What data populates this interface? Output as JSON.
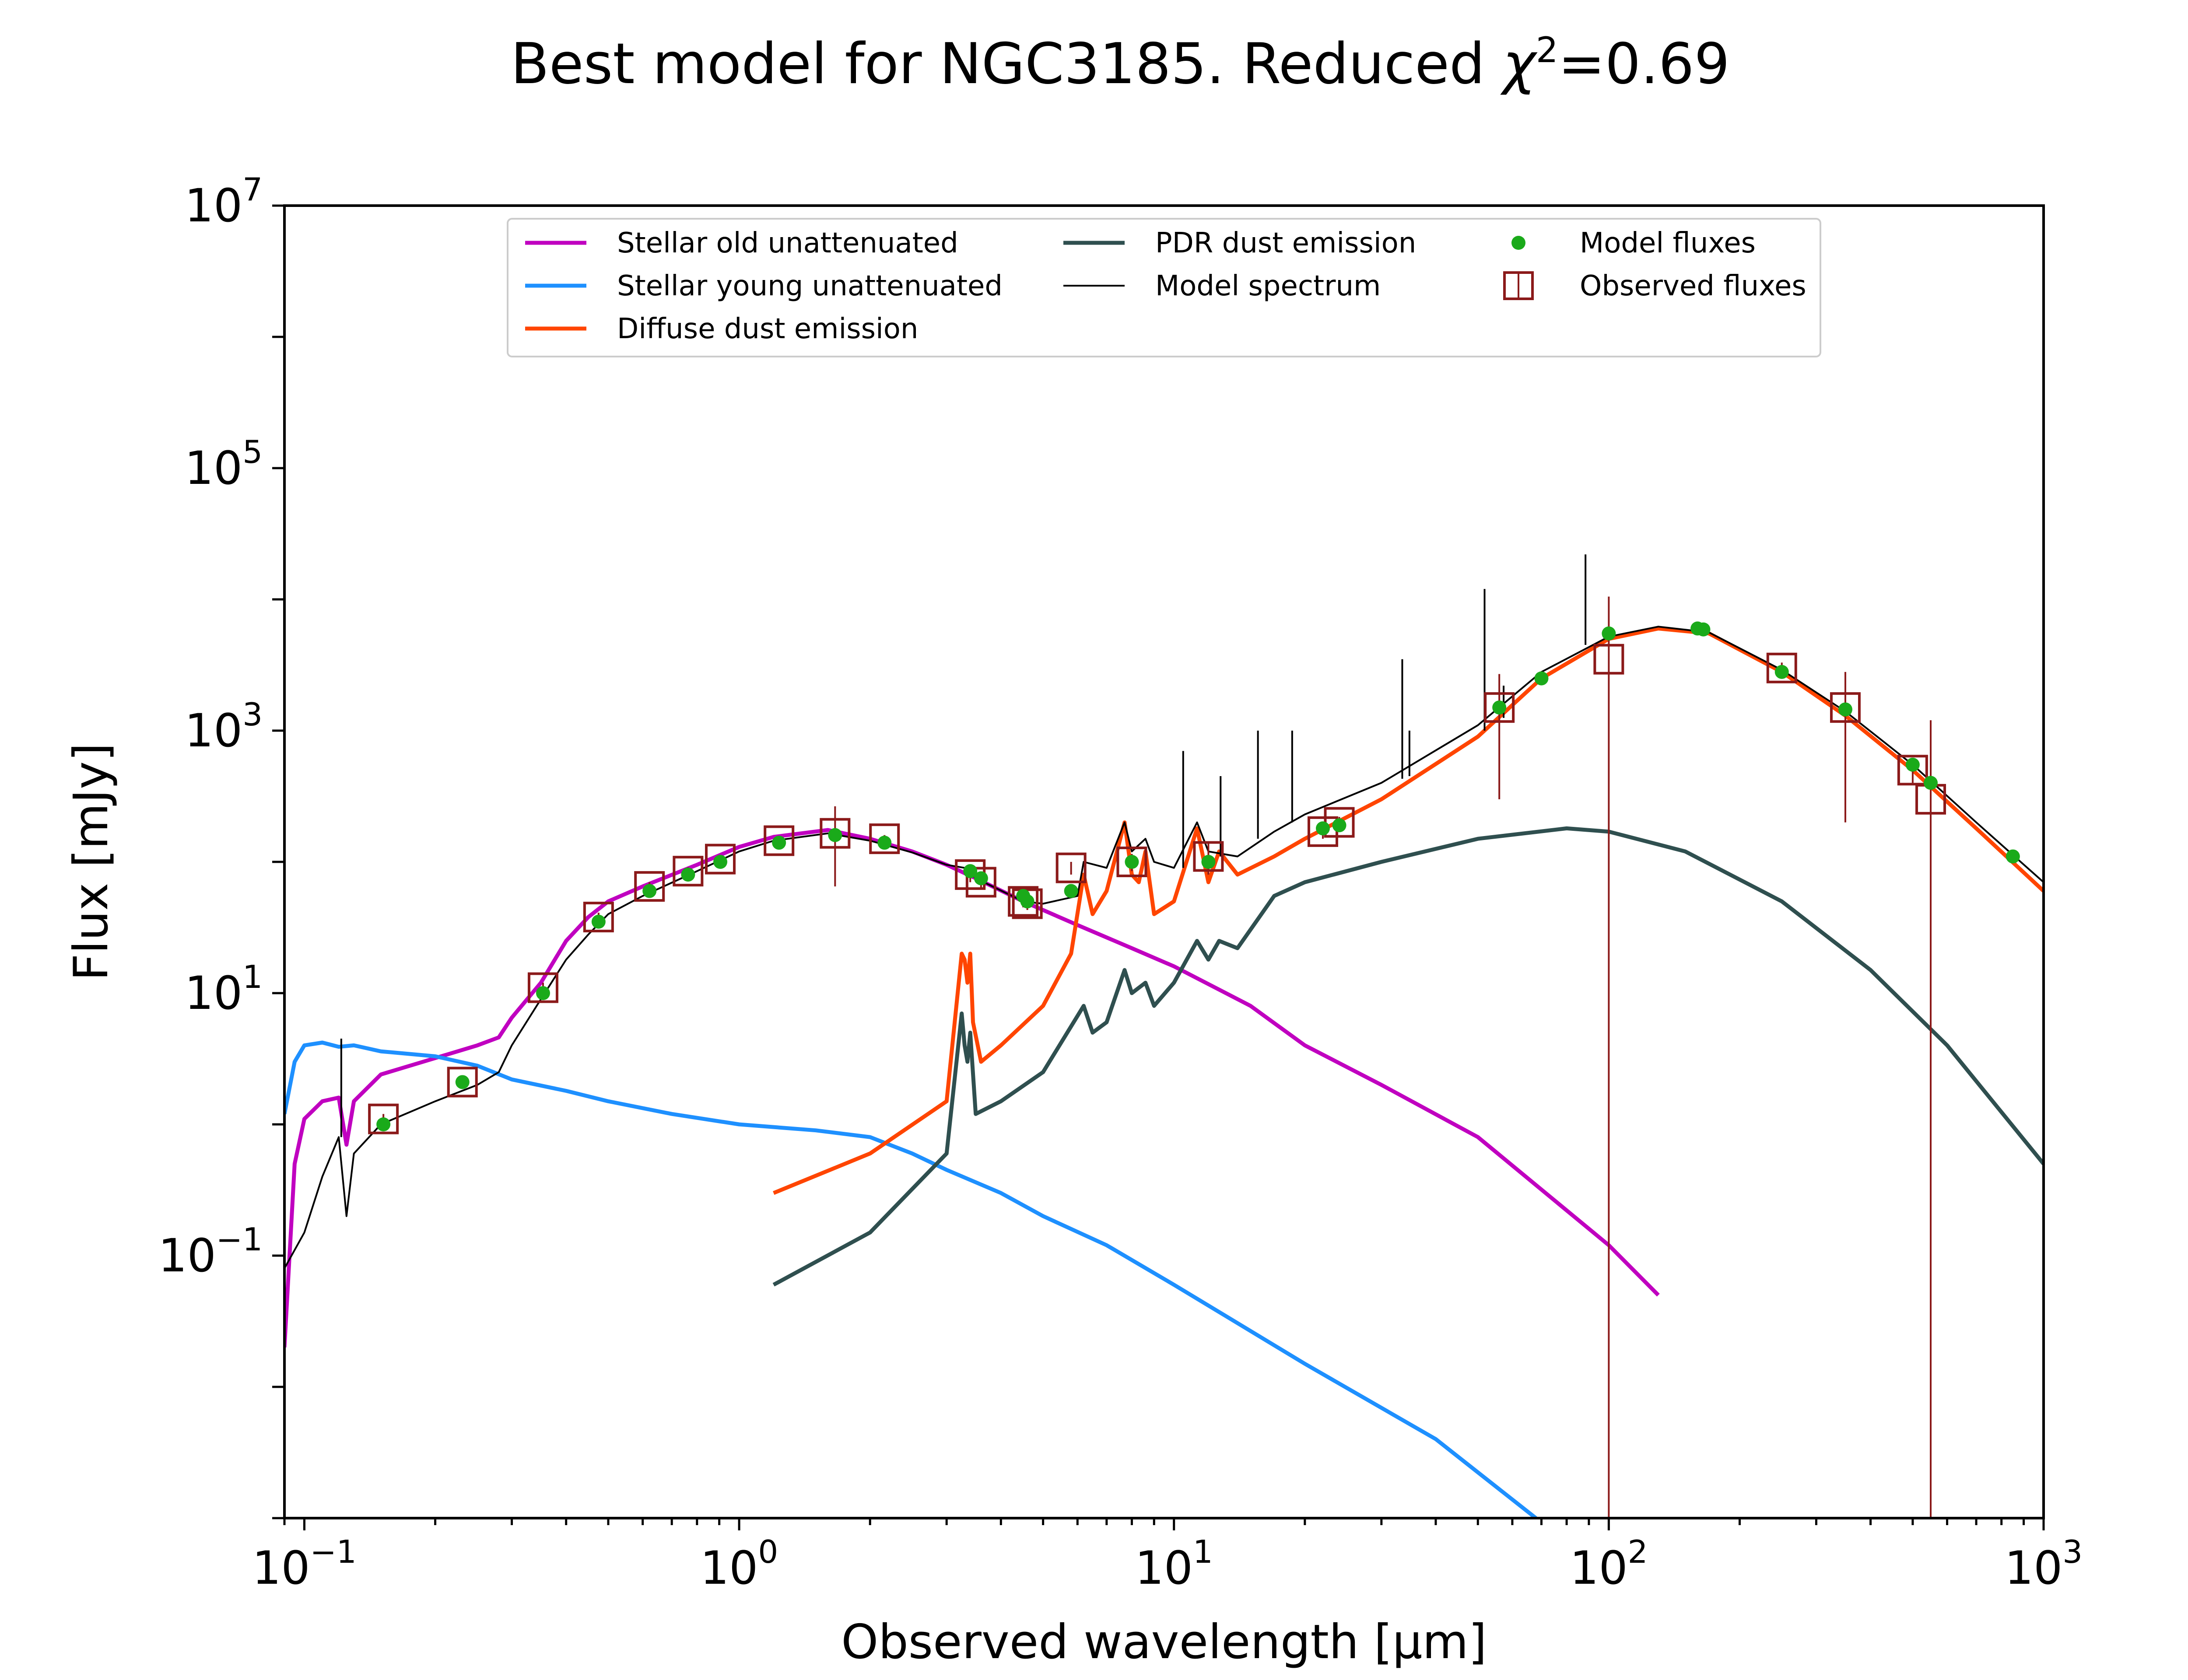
{
  "chart_data": {
    "type": "line",
    "title": "Best model for NGC3185. Reduced χ²=0.69",
    "title_parts": {
      "main": "Best model for NGC3185. Reduced ",
      "chi": "χ",
      "sup": "2",
      "tail": "=0.69"
    },
    "xlabel": "Observed wavelength [μm]",
    "ylabel": "Flux [mJy]",
    "xscale": "log",
    "yscale": "log",
    "xlim": [
      0.09,
      1000
    ],
    "ylim": [
      0.001,
      10000000
    ],
    "x_ticks": [
      {
        "base": "10",
        "exp": "−1",
        "value": 0.1
      },
      {
        "base": "10",
        "exp": "0",
        "value": 1
      },
      {
        "base": "10",
        "exp": "1",
        "value": 10
      },
      {
        "base": "10",
        "exp": "2",
        "value": 100
      },
      {
        "base": "10",
        "exp": "3",
        "value": 1000
      }
    ],
    "y_ticks": [
      {
        "base": "10",
        "exp": "−1",
        "value": 0.1
      },
      {
        "base": "10",
        "exp": "1",
        "value": 10
      },
      {
        "base": "10",
        "exp": "3",
        "value": 1000
      },
      {
        "base": "10",
        "exp": "5",
        "value": 100000
      },
      {
        "base": "10",
        "exp": "7",
        "value": 10000000
      }
    ],
    "legend_position": "top-center",
    "legend": [
      {
        "label": "Stellar old unattenuated",
        "kind": "line",
        "color": "#c000c0"
      },
      {
        "label": "Stellar young unattenuated",
        "kind": "line",
        "color": "#1e90ff"
      },
      {
        "label": "Diffuse dust emission",
        "kind": "line",
        "color": "#ff4500"
      },
      {
        "label": "PDR dust emission",
        "kind": "line",
        "color": "#2f4f4f"
      },
      {
        "label": "Model spectrum",
        "kind": "thin-line",
        "color": "#000000"
      },
      {
        "label": "Model fluxes",
        "kind": "dot",
        "color": "#1aaa1a"
      },
      {
        "label": "Observed fluxes",
        "kind": "square",
        "color": "#8b1a1a"
      }
    ],
    "series": [
      {
        "name": "Stellar old unattenuated",
        "color": "#c000c0",
        "width": 9,
        "points": [
          [
            0.09,
            0.02
          ],
          [
            0.095,
            0.5
          ],
          [
            0.1,
            1.1
          ],
          [
            0.11,
            1.5
          ],
          [
            0.12,
            1.6
          ],
          [
            0.125,
            0.7
          ],
          [
            0.13,
            1.5
          ],
          [
            0.15,
            2.4
          ],
          [
            0.2,
            3.2
          ],
          [
            0.25,
            4.0
          ],
          [
            0.28,
            4.6
          ],
          [
            0.3,
            6.5
          ],
          [
            0.35,
            12
          ],
          [
            0.4,
            25
          ],
          [
            0.45,
            38
          ],
          [
            0.5,
            50
          ],
          [
            0.6,
            65
          ],
          [
            0.8,
            95
          ],
          [
            1.0,
            130
          ],
          [
            1.2,
            155
          ],
          [
            1.6,
            175
          ],
          [
            2.0,
            150
          ],
          [
            2.5,
            120
          ],
          [
            3.0,
            95
          ],
          [
            3.5,
            75
          ],
          [
            4.5,
            50
          ],
          [
            6.0,
            33
          ],
          [
            8.0,
            22
          ],
          [
            10,
            16
          ],
          [
            15,
            8
          ],
          [
            20,
            4
          ],
          [
            30,
            2
          ],
          [
            50,
            0.8
          ],
          [
            100,
            0.12
          ],
          [
            130,
            0.05
          ]
        ]
      },
      {
        "name": "Stellar young unattenuated",
        "color": "#1e90ff",
        "width": 9,
        "points": [
          [
            0.09,
            1.2
          ],
          [
            0.095,
            3.0
          ],
          [
            0.1,
            4.0
          ],
          [
            0.11,
            4.2
          ],
          [
            0.12,
            3.9
          ],
          [
            0.13,
            4.0
          ],
          [
            0.15,
            3.6
          ],
          [
            0.2,
            3.3
          ],
          [
            0.25,
            2.8
          ],
          [
            0.3,
            2.2
          ],
          [
            0.4,
            1.8
          ],
          [
            0.5,
            1.5
          ],
          [
            0.7,
            1.2
          ],
          [
            1.0,
            1.0
          ],
          [
            1.5,
            0.9
          ],
          [
            2.0,
            0.8
          ],
          [
            2.5,
            0.6
          ],
          [
            3.0,
            0.45
          ],
          [
            4.0,
            0.3
          ],
          [
            5.0,
            0.2
          ],
          [
            7.0,
            0.12
          ],
          [
            10,
            0.06
          ],
          [
            20,
            0.015
          ],
          [
            40,
            0.004
          ],
          [
            68,
            0.001
          ]
        ]
      },
      {
        "name": "Diffuse dust emission",
        "color": "#ff4500",
        "width": 9,
        "points": [
          [
            1.2,
            0.3
          ],
          [
            2.0,
            0.6
          ],
          [
            3.0,
            1.5
          ],
          [
            3.25,
            20
          ],
          [
            3.3,
            18
          ],
          [
            3.35,
            12
          ],
          [
            3.4,
            20
          ],
          [
            3.45,
            6
          ],
          [
            3.6,
            3
          ],
          [
            4.0,
            4
          ],
          [
            5.0,
            8
          ],
          [
            5.8,
            20
          ],
          [
            6.2,
            80
          ],
          [
            6.5,
            40
          ],
          [
            7.0,
            60
          ],
          [
            7.7,
            200
          ],
          [
            8.0,
            80
          ],
          [
            8.3,
            70
          ],
          [
            8.6,
            120
          ],
          [
            9.0,
            40
          ],
          [
            10,
            50
          ],
          [
            11.3,
            180
          ],
          [
            12,
            70
          ],
          [
            12.7,
            120
          ],
          [
            14,
            80
          ],
          [
            17,
            110
          ],
          [
            20,
            150
          ],
          [
            30,
            300
          ],
          [
            50,
            900
          ],
          [
            70,
            2500
          ],
          [
            100,
            5000
          ],
          [
            130,
            6000
          ],
          [
            170,
            5500
          ],
          [
            250,
            2800
          ],
          [
            350,
            1300
          ],
          [
            500,
            500
          ],
          [
            700,
            180
          ],
          [
            1000,
            60
          ]
        ]
      },
      {
        "name": "PDR dust emission",
        "color": "#2f4f4f",
        "width": 9,
        "points": [
          [
            1.2,
            0.06
          ],
          [
            2.0,
            0.15
          ],
          [
            3.0,
            0.6
          ],
          [
            3.25,
            7
          ],
          [
            3.3,
            4
          ],
          [
            3.35,
            3
          ],
          [
            3.4,
            5
          ],
          [
            3.5,
            1.2
          ],
          [
            4.0,
            1.5
          ],
          [
            5.0,
            2.5
          ],
          [
            6.2,
            8
          ],
          [
            6.5,
            5
          ],
          [
            7.0,
            6
          ],
          [
            7.7,
            15
          ],
          [
            8.0,
            10
          ],
          [
            8.6,
            12
          ],
          [
            9.0,
            8
          ],
          [
            10,
            12
          ],
          [
            11.3,
            25
          ],
          [
            12,
            18
          ],
          [
            12.7,
            25
          ],
          [
            14,
            22
          ],
          [
            17,
            55
          ],
          [
            20,
            70
          ],
          [
            30,
            100
          ],
          [
            50,
            150
          ],
          [
            80,
            180
          ],
          [
            100,
            170
          ],
          [
            150,
            120
          ],
          [
            250,
            50
          ],
          [
            400,
            15
          ],
          [
            600,
            4
          ],
          [
            1000,
            0.5
          ]
        ]
      },
      {
        "name": "Model spectrum",
        "color": "#000000",
        "width": 4,
        "points": [
          [
            0.09,
            0.08
          ],
          [
            0.1,
            0.15
          ],
          [
            0.11,
            0.4
          ],
          [
            0.12,
            0.8
          ],
          [
            0.125,
            0.2
          ],
          [
            0.13,
            0.6
          ],
          [
            0.15,
            1.0
          ],
          [
            0.2,
            1.5
          ],
          [
            0.25,
            2.0
          ],
          [
            0.28,
            2.5
          ],
          [
            0.3,
            4
          ],
          [
            0.35,
            9
          ],
          [
            0.4,
            18
          ],
          [
            0.45,
            28
          ],
          [
            0.5,
            40
          ],
          [
            0.6,
            55
          ],
          [
            0.8,
            85
          ],
          [
            1.0,
            120
          ],
          [
            1.2,
            145
          ],
          [
            1.6,
            165
          ],
          [
            2.0,
            145
          ],
          [
            2.5,
            118
          ],
          [
            3.0,
            95
          ],
          [
            3.3,
            90
          ],
          [
            3.5,
            75
          ],
          [
            4.5,
            50
          ],
          [
            5.0,
            48
          ],
          [
            6.0,
            55
          ],
          [
            6.2,
            100
          ],
          [
            7.0,
            90
          ],
          [
            7.7,
            200
          ],
          [
            8.0,
            120
          ],
          [
            8.6,
            150
          ],
          [
            9.0,
            100
          ],
          [
            10,
            90
          ],
          [
            11.3,
            200
          ],
          [
            12,
            120
          ],
          [
            14,
            110
          ],
          [
            17,
            170
          ],
          [
            20,
            230
          ],
          [
            30,
            400
          ],
          [
            50,
            1100
          ],
          [
            70,
            2800
          ],
          [
            100,
            5200
          ],
          [
            130,
            6200
          ],
          [
            170,
            5600
          ],
          [
            250,
            2900
          ],
          [
            350,
            1400
          ],
          [
            500,
            550
          ],
          [
            700,
            200
          ],
          [
            1000,
            70
          ]
        ]
      }
    ],
    "emission_lines": [
      {
        "x": 0.1216,
        "from": 0.8,
        "to": 4.5
      },
      {
        "x": 10.5,
        "from": 90,
        "to": 700
      },
      {
        "x": 12.8,
        "from": 110,
        "to": 450
      },
      {
        "x": 15.6,
        "from": 150,
        "to": 1000
      },
      {
        "x": 18.7,
        "from": 200,
        "to": 1000
      },
      {
        "x": 33.5,
        "from": 430,
        "to": 3500
      },
      {
        "x": 34.8,
        "from": 450,
        "to": 1000
      },
      {
        "x": 51.8,
        "from": 1000,
        "to": 12000
      },
      {
        "x": 57.3,
        "from": 1250,
        "to": 2200
      },
      {
        "x": 88.4,
        "from": 4500,
        "to": 22000
      }
    ],
    "model_fluxes": [
      [
        0.152,
        1.0
      ],
      [
        0.231,
        2.1
      ],
      [
        0.354,
        10
      ],
      [
        0.475,
        35
      ],
      [
        0.622,
        60
      ],
      [
        0.763,
        80
      ],
      [
        0.905,
        100
      ],
      [
        1.235,
        140
      ],
      [
        1.662,
        160
      ],
      [
        2.159,
        140
      ],
      [
        3.4,
        85
      ],
      [
        3.6,
        75
      ],
      [
        4.5,
        55
      ],
      [
        4.6,
        50
      ],
      [
        5.8,
        60
      ],
      [
        8.0,
        100
      ],
      [
        12,
        100
      ],
      [
        22,
        180
      ],
      [
        24,
        190
      ],
      [
        56,
        1500
      ],
      [
        70,
        2500
      ],
      [
        100,
        5500
      ],
      [
        160,
        6000
      ],
      [
        165,
        5900
      ],
      [
        250,
        2800
      ],
      [
        350,
        1450
      ],
      [
        500,
        550
      ],
      [
        550,
        400
      ],
      [
        850,
        110
      ]
    ],
    "observed_fluxes": [
      {
        "x": 0.152,
        "y": 1.1,
        "err": 0.1
      },
      {
        "x": 0.231,
        "y": 2.1,
        "err": 0.2
      },
      {
        "x": 0.354,
        "y": 11,
        "err": 1
      },
      {
        "x": 0.475,
        "y": 38,
        "err": 3
      },
      {
        "x": 0.622,
        "y": 65,
        "err": 5
      },
      {
        "x": 0.763,
        "y": 85,
        "err": 6
      },
      {
        "x": 0.905,
        "y": 105,
        "err": 8
      },
      {
        "x": 1.235,
        "y": 145,
        "err": 10
      },
      {
        "x": 1.662,
        "y": 165,
        "err": 100
      },
      {
        "x": 2.159,
        "y": 150,
        "err": 10
      },
      {
        "x": 3.4,
        "y": 80,
        "err": 10
      },
      {
        "x": 3.6,
        "y": 70,
        "err": 8
      },
      {
        "x": 4.5,
        "y": 50,
        "err": 5
      },
      {
        "x": 4.6,
        "y": 48,
        "err": 5
      },
      {
        "x": 5.8,
        "y": 90,
        "err": 10
      },
      {
        "x": 8.0,
        "y": 100,
        "err": 15
      },
      {
        "x": 12,
        "y": 110,
        "err": 30
      },
      {
        "x": 22,
        "y": 170,
        "err": 20
      },
      {
        "x": 24,
        "y": 200,
        "err": 20
      },
      {
        "x": 56,
        "y": 1500,
        "err": 1200
      },
      {
        "x": 100,
        "y": 3500,
        "err": 7000
      },
      {
        "x": 250,
        "y": 3000,
        "err": 300
      },
      {
        "x": 350,
        "y": 1500,
        "err": 1300
      },
      {
        "x": 500,
        "y": 500,
        "err": 100
      },
      {
        "x": 550,
        "y": 300,
        "err": 900
      }
    ]
  }
}
